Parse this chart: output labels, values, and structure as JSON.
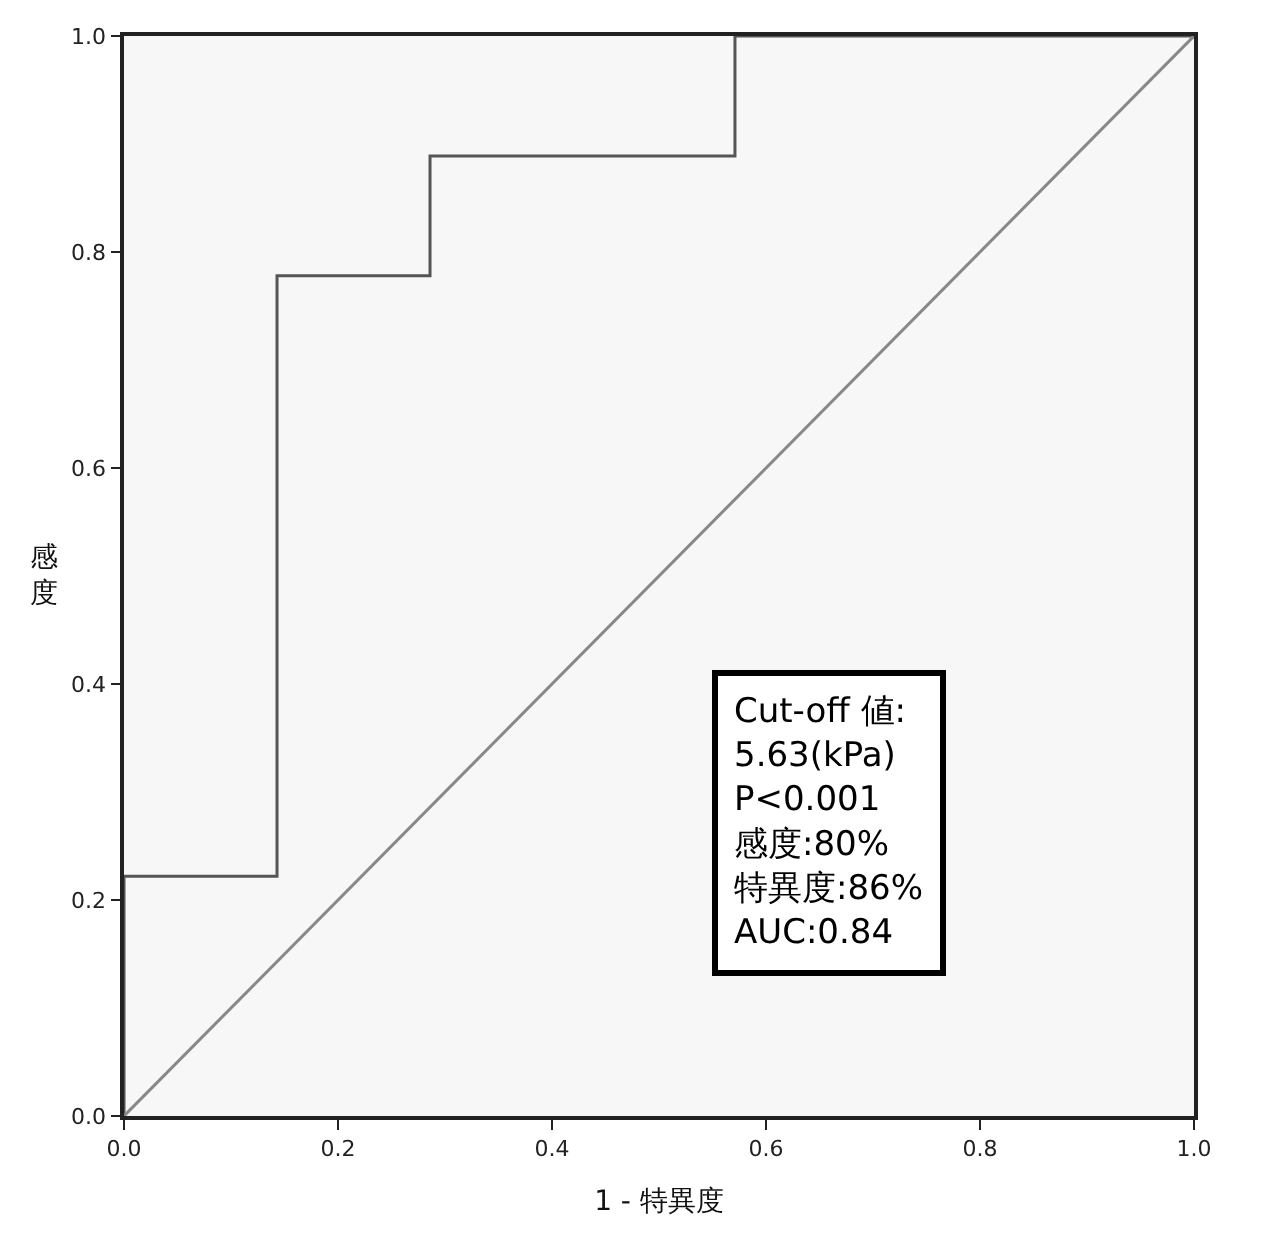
{
  "chart_data": {
    "type": "step",
    "xlabel": "1 - 特異度",
    "ylabel": "感度",
    "series": [
      {
        "color": "#555555",
        "x": [
          0,
          0,
          0.143,
          0.286,
          0.571,
          1.0
        ],
        "values": [
          0,
          0.222,
          0.778,
          0.889,
          1.0,
          1.0
        ]
      },
      {
        "type": "line",
        "color": "#888888",
        "x": [
          0,
          1
        ],
        "values": [
          0,
          1
        ]
      }
    ],
    "annotations": [
      "Cut-off 値:\n5.63(kPa)\nP<0.001\n感度:80%\n特異度:86%\nAUC:0.84"
    ],
    "xlim": [
      0,
      1
    ],
    "ylim": [
      0,
      1
    ],
    "xticks": [
      {
        "value": 0,
        "label": "0.0"
      },
      {
        "value": 0.2,
        "label": "0.2"
      },
      {
        "value": 0.4,
        "label": "0.4"
      },
      {
        "value": 0.6,
        "label": "0.6"
      },
      {
        "value": 0.8,
        "label": "0.8"
      },
      {
        "value": 1,
        "label": "1.0"
      }
    ],
    "yticks": [
      {
        "value": 0,
        "label": "0.0"
      },
      {
        "value": 0.2,
        "label": "0.2"
      },
      {
        "value": 0.4,
        "label": "0.4"
      },
      {
        "value": 0.6,
        "label": "0.6"
      },
      {
        "value": 0.8,
        "label": "0.8"
      },
      {
        "value": 1,
        "label": "1.0"
      }
    ],
    "grid": false,
    "marker": "none",
    "line_style": "solid"
  }
}
